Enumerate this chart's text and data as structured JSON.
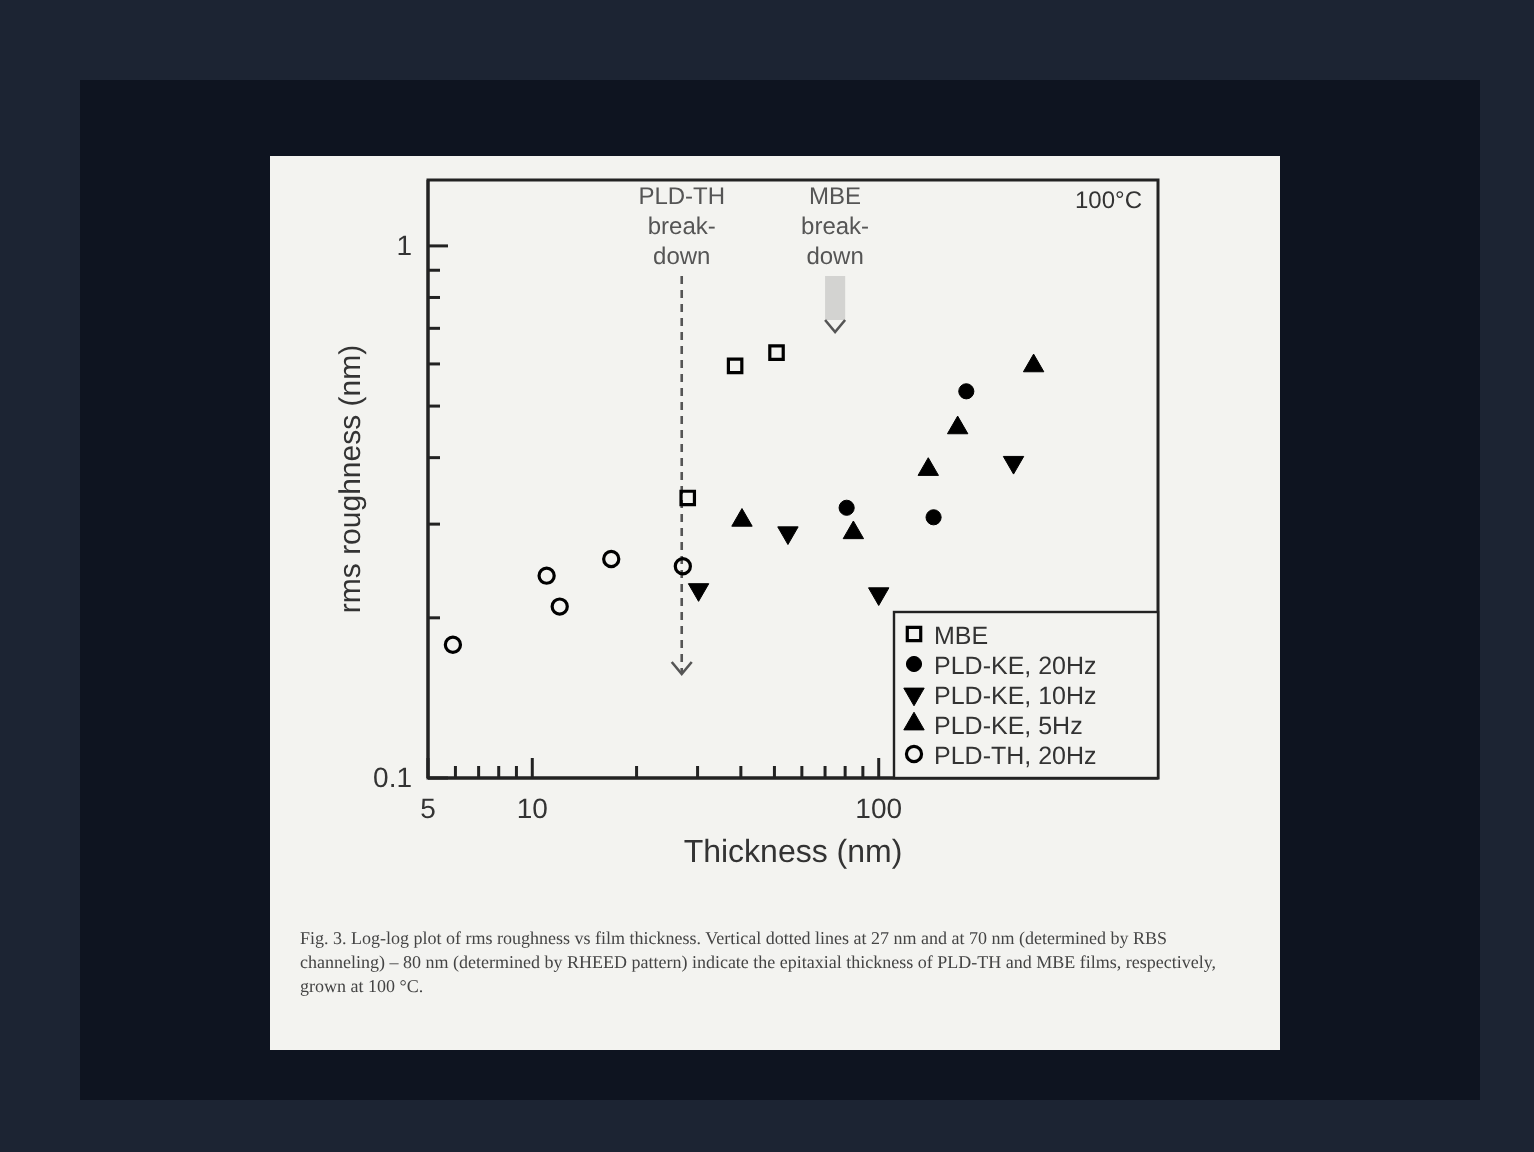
{
  "chart_data": {
    "type": "scatter",
    "xlabel": "Thickness (nm)",
    "ylabel": "rms roughness (nm)",
    "log": "xy",
    "grid": false,
    "legend": "bottom right",
    "xlim": [
      5,
      640
    ],
    "ylim": [
      0.1,
      1.33
    ],
    "xticks": [
      5,
      {
        "value": 6,
        "label": null
      },
      {
        "value": 7,
        "label": null
      },
      {
        "value": 8,
        "label": null
      },
      {
        "value": 9,
        "label": null
      },
      10,
      {
        "value": 20,
        "label": null
      },
      {
        "value": 30,
        "label": null
      },
      {
        "value": 40,
        "label": null
      },
      {
        "value": 50,
        "label": null
      },
      {
        "value": 60,
        "label": null
      },
      {
        "value": 70,
        "label": null
      },
      {
        "value": 80,
        "label": null
      },
      {
        "value": 90,
        "label": null
      },
      100
    ],
    "yticks": [
      0.1,
      {
        "value": 0.2,
        "label": null
      },
      {
        "value": 0.3,
        "label": null
      },
      {
        "value": 0.4,
        "label": null
      },
      {
        "value": 0.5,
        "label": null
      },
      {
        "value": 0.6,
        "label": null
      },
      {
        "value": 0.7,
        "label": null
      },
      {
        "value": 0.8,
        "label": null
      },
      {
        "value": 0.9,
        "label": null
      },
      1
    ],
    "series": [
      {
        "name": "MBE",
        "color": "#000000",
        "marker": "square-open",
        "x": [
          28.1,
          38.5,
          50.7
        ],
        "values": [
          0.336,
          0.595,
          0.63
        ]
      },
      {
        "name": "PLD-KE, 20Hz",
        "color": "#000000",
        "marker": "circle",
        "x": [
          80.8,
          144,
          179
        ],
        "values": [
          0.322,
          0.309,
          0.533
        ]
      },
      {
        "name": "PLD-KE, 10Hz",
        "color": "#000000",
        "marker": "triangle-down",
        "x": [
          30.2,
          54.7,
          100,
          245
        ],
        "values": [
          0.226,
          0.289,
          0.222,
          0.392
        ]
      },
      {
        "name": "PLD-KE, 5Hz",
        "color": "#000000",
        "marker": "triangle",
        "x": [
          40.3,
          84.5,
          139,
          169,
          280
        ],
        "values": [
          0.305,
          0.289,
          0.38,
          0.455,
          0.595
        ]
      },
      {
        "name": "PLD-TH, 20Hz",
        "color": "#000000",
        "marker": "circle-open",
        "x": [
          5.9,
          11.0,
          12.0,
          16.9,
          27.2
        ],
        "values": [
          0.178,
          0.24,
          0.21,
          0.258,
          0.25
        ]
      }
    ],
    "ref_lines": [
      {
        "axis": "x",
        "value": 27,
        "label": "PLD-TH break- down",
        "line_style": "dashed",
        "color": "#555555"
      }
    ],
    "bands": [
      {
        "axis": "x",
        "from": 70,
        "to": 80,
        "label": "MBE break- down",
        "color": "#999999"
      }
    ],
    "annotations": [
      "100°C",
      "Fig. 3.  Log-log plot of rms roughness vs film thickness.  Vertical dotted lines at 27 nm and at 70 nm (determined by RBS channeling) – 80 nm (determined by RHEED pattern) indicate the epitaxial thickness of PLD-TH and MBE films, respectively, grown at 100 °C."
    ]
  }
}
